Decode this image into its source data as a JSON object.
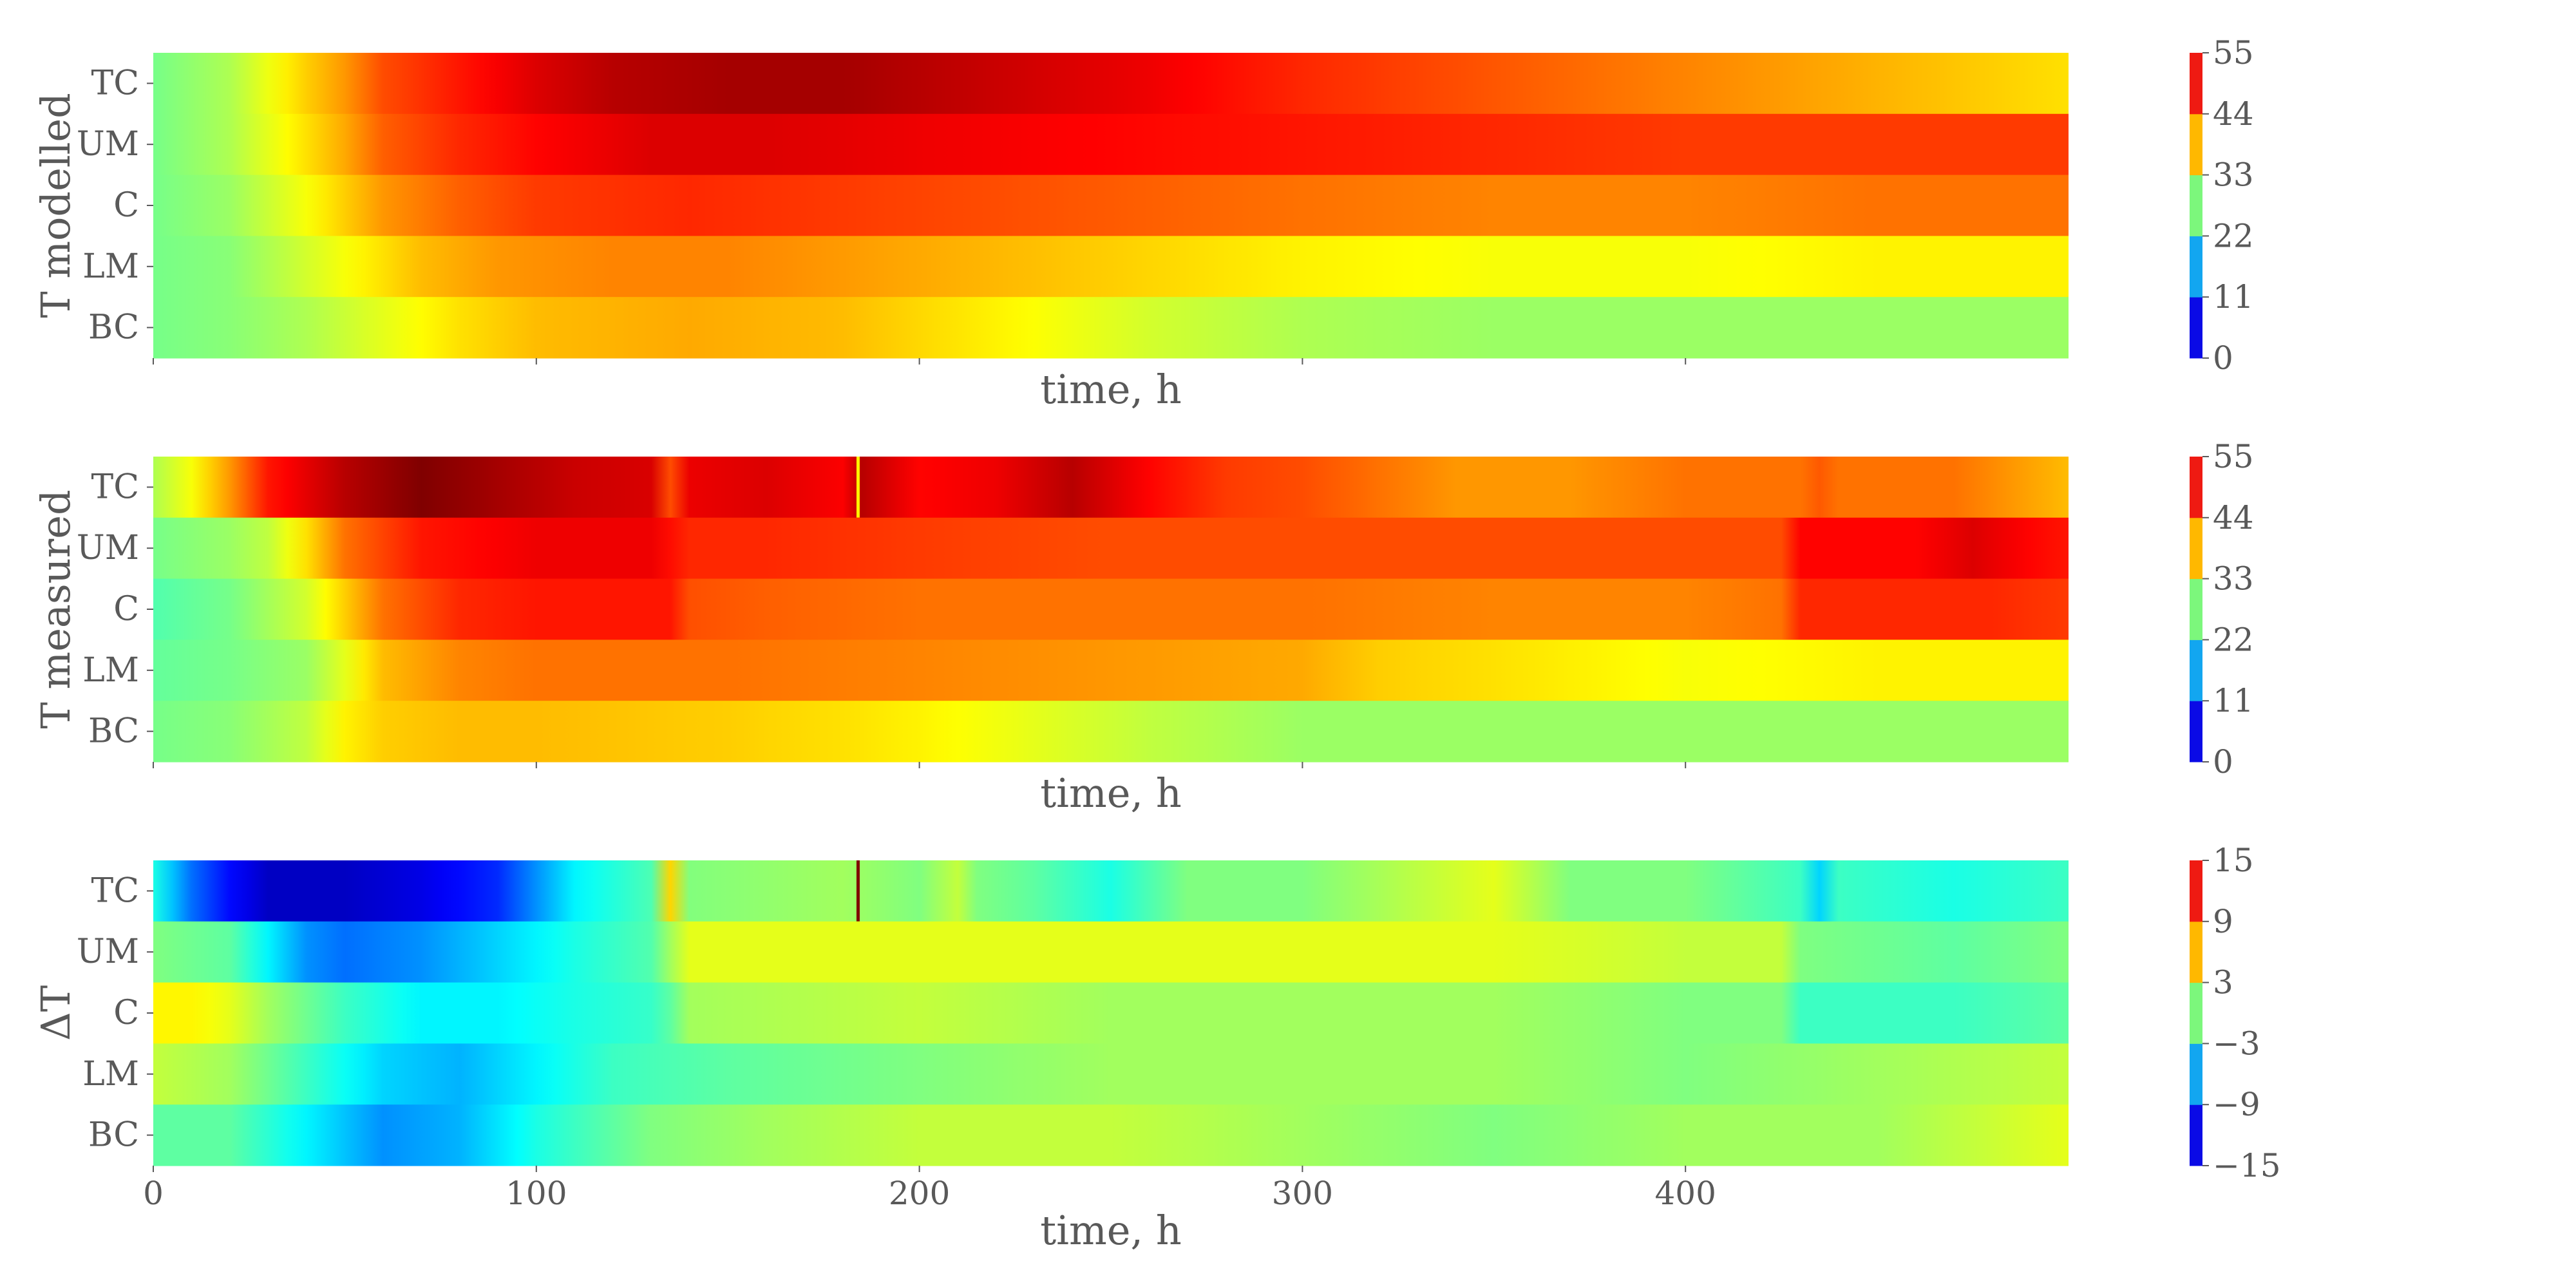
{
  "chart_data": [
    {
      "type": "heatmap",
      "ylabel": "T modelled",
      "xlabel": "time, h",
      "rows": [
        "TC",
        "UM",
        "C",
        "LM",
        "BC"
      ],
      "x_range": [
        0,
        500
      ],
      "x_ticks": [
        0,
        100,
        200,
        300,
        400
      ],
      "x_tick_labels_shown": false,
      "colorbar": {
        "min": 0,
        "max": 55,
        "ticks": [
          "0",
          "11",
          "22",
          "33",
          "44",
          "55"
        ]
      },
      "profiles": {
        "TC": [
          [
            0,
            27
          ],
          [
            20,
            30
          ],
          [
            40,
            37
          ],
          [
            50,
            40
          ],
          [
            60,
            44
          ],
          [
            80,
            47
          ],
          [
            100,
            50
          ],
          [
            120,
            52
          ],
          [
            150,
            53
          ],
          [
            180,
            53
          ],
          [
            220,
            51
          ],
          [
            260,
            49
          ],
          [
            300,
            46
          ],
          [
            340,
            44
          ],
          [
            380,
            42
          ],
          [
            420,
            40
          ],
          [
            460,
            38
          ],
          [
            500,
            36
          ]
        ],
        "UM": [
          [
            0,
            27
          ],
          [
            20,
            30
          ],
          [
            40,
            36
          ],
          [
            50,
            39
          ],
          [
            60,
            43
          ],
          [
            80,
            46
          ],
          [
            100,
            48
          ],
          [
            130,
            50
          ],
          [
            160,
            50
          ],
          [
            200,
            49
          ],
          [
            250,
            48
          ],
          [
            300,
            47
          ],
          [
            350,
            46
          ],
          [
            400,
            45
          ],
          [
            450,
            45
          ],
          [
            500,
            45
          ]
        ],
        "C": [
          [
            0,
            27
          ],
          [
            20,
            29
          ],
          [
            40,
            34
          ],
          [
            50,
            37
          ],
          [
            60,
            40
          ],
          [
            80,
            43
          ],
          [
            100,
            45
          ],
          [
            140,
            46
          ],
          [
            180,
            45
          ],
          [
            220,
            44
          ],
          [
            260,
            43
          ],
          [
            300,
            42
          ],
          [
            350,
            41
          ],
          [
            400,
            41
          ],
          [
            450,
            42
          ],
          [
            500,
            42
          ]
        ],
        "LM": [
          [
            0,
            27
          ],
          [
            20,
            28
          ],
          [
            40,
            32
          ],
          [
            60,
            36
          ],
          [
            70,
            38
          ],
          [
            90,
            40
          ],
          [
            120,
            41
          ],
          [
            150,
            41
          ],
          [
            200,
            39
          ],
          [
            250,
            37
          ],
          [
            300,
            35
          ],
          [
            350,
            34
          ],
          [
            400,
            34
          ],
          [
            450,
            35
          ],
          [
            500,
            35
          ]
        ],
        "BC": [
          [
            0,
            27
          ],
          [
            20,
            28
          ],
          [
            40,
            30
          ],
          [
            60,
            33
          ],
          [
            80,
            36
          ],
          [
            100,
            38
          ],
          [
            140,
            39
          ],
          [
            180,
            38
          ],
          [
            220,
            35
          ],
          [
            260,
            32
          ],
          [
            300,
            30
          ],
          [
            350,
            29
          ],
          [
            400,
            29
          ],
          [
            450,
            29
          ],
          [
            500,
            29
          ]
        ]
      },
      "spikes": {}
    },
    {
      "type": "heatmap",
      "ylabel": "T measured",
      "xlabel": "time, h",
      "rows": [
        "TC",
        "UM",
        "C",
        "LM",
        "BC"
      ],
      "x_range": [
        0,
        500
      ],
      "x_ticks": [
        0,
        100,
        200,
        300,
        400
      ],
      "x_tick_labels_shown": false,
      "colorbar": {
        "min": 0,
        "max": 55,
        "ticks": [
          "0",
          "11",
          "22",
          "33",
          "44",
          "55"
        ]
      },
      "profiles": {
        "TC": [
          [
            0,
            30
          ],
          [
            10,
            34
          ],
          [
            20,
            40
          ],
          [
            30,
            47
          ],
          [
            50,
            52
          ],
          [
            70,
            55
          ],
          [
            90,
            53
          ],
          [
            110,
            51
          ],
          [
            134,
            50
          ],
          [
            135,
            44
          ],
          [
            137,
            49
          ],
          [
            160,
            50
          ],
          [
            183,
            48
          ],
          [
            185,
            52
          ],
          [
            200,
            48
          ],
          [
            220,
            49
          ],
          [
            240,
            52
          ],
          [
            260,
            48
          ],
          [
            280,
            45
          ],
          [
            300,
            44
          ],
          [
            340,
            40
          ],
          [
            370,
            40
          ],
          [
            400,
            42
          ],
          [
            430,
            42
          ],
          [
            433,
            46
          ],
          [
            436,
            42
          ],
          [
            470,
            42
          ],
          [
            500,
            38
          ]
        ],
        "UM": [
          [
            0,
            27
          ],
          [
            20,
            29
          ],
          [
            30,
            31
          ],
          [
            40,
            36
          ],
          [
            50,
            42
          ],
          [
            70,
            47
          ],
          [
            100,
            49
          ],
          [
            134,
            49
          ],
          [
            136,
            46
          ],
          [
            160,
            46
          ],
          [
            200,
            45
          ],
          [
            250,
            44
          ],
          [
            300,
            44
          ],
          [
            350,
            44
          ],
          [
            400,
            44
          ],
          [
            425,
            44
          ],
          [
            428,
            48
          ],
          [
            460,
            48
          ],
          [
            475,
            50
          ],
          [
            490,
            48
          ],
          [
            500,
            47
          ]
        ],
        "C": [
          [
            0,
            25
          ],
          [
            20,
            27
          ],
          [
            40,
            32
          ],
          [
            50,
            37
          ],
          [
            60,
            42
          ],
          [
            80,
            46
          ],
          [
            100,
            47
          ],
          [
            135,
            47
          ],
          [
            137,
            44
          ],
          [
            160,
            43
          ],
          [
            200,
            42
          ],
          [
            250,
            42
          ],
          [
            300,
            42
          ],
          [
            350,
            41
          ],
          [
            400,
            41
          ],
          [
            425,
            42
          ],
          [
            428,
            46
          ],
          [
            480,
            46
          ],
          [
            500,
            45
          ]
        ],
        "LM": [
          [
            0,
            26
          ],
          [
            20,
            27
          ],
          [
            40,
            29
          ],
          [
            50,
            33
          ],
          [
            60,
            38
          ],
          [
            80,
            41
          ],
          [
            100,
            42
          ],
          [
            150,
            42
          ],
          [
            200,
            41
          ],
          [
            250,
            40
          ],
          [
            300,
            39
          ],
          [
            320,
            37
          ],
          [
            350,
            36
          ],
          [
            400,
            34
          ],
          [
            450,
            35
          ],
          [
            500,
            35
          ]
        ],
        "BC": [
          [
            0,
            27
          ],
          [
            20,
            28
          ],
          [
            40,
            31
          ],
          [
            50,
            35
          ],
          [
            60,
            37
          ],
          [
            80,
            38
          ],
          [
            100,
            38
          ],
          [
            150,
            37
          ],
          [
            180,
            36
          ],
          [
            200,
            35
          ],
          [
            230,
            33
          ],
          [
            260,
            31
          ],
          [
            300,
            29
          ],
          [
            350,
            29
          ],
          [
            400,
            29
          ],
          [
            450,
            29
          ],
          [
            500,
            29
          ]
        ]
      },
      "spikes": {
        "TC": [
          [
            184,
            35
          ]
        ]
      }
    },
    {
      "type": "heatmap",
      "ylabel": "ΔT",
      "xlabel": "time, h",
      "rows": [
        "TC",
        "UM",
        "C",
        "LM",
        "BC"
      ],
      "x_range": [
        0,
        500
      ],
      "x_ticks": [
        0,
        100,
        200,
        300,
        400
      ],
      "x_tick_labels": [
        "0",
        "100",
        "200",
        "300",
        "400"
      ],
      "x_tick_labels_shown": true,
      "colorbar": {
        "min": -15,
        "max": 15,
        "ticks": [
          "−15",
          "−9",
          "−3",
          "3",
          "9",
          "15"
        ]
      },
      "profiles": {
        "TC": [
          [
            0,
            -3
          ],
          [
            10,
            -8
          ],
          [
            20,
            -11
          ],
          [
            30,
            -13
          ],
          [
            50,
            -13
          ],
          [
            70,
            -12
          ],
          [
            90,
            -10
          ],
          [
            100,
            -7
          ],
          [
            110,
            -4
          ],
          [
            134,
            -1
          ],
          [
            135,
            5
          ],
          [
            137,
            0
          ],
          [
            180,
            1
          ],
          [
            200,
            0
          ],
          [
            210,
            2
          ],
          [
            215,
            0
          ],
          [
            230,
            -1
          ],
          [
            250,
            -3
          ],
          [
            270,
            0
          ],
          [
            300,
            0
          ],
          [
            350,
            3
          ],
          [
            370,
            0
          ],
          [
            400,
            0
          ],
          [
            430,
            -2
          ],
          [
            435,
            -5
          ],
          [
            440,
            -2
          ],
          [
            470,
            -3
          ],
          [
            500,
            -2
          ]
        ],
        "UM": [
          [
            0,
            0
          ],
          [
            20,
            -1
          ],
          [
            30,
            -4
          ],
          [
            40,
            -7
          ],
          [
            50,
            -8
          ],
          [
            70,
            -7
          ],
          [
            90,
            -5
          ],
          [
            110,
            -3
          ],
          [
            134,
            -1
          ],
          [
            136,
            3
          ],
          [
            160,
            3
          ],
          [
            200,
            3
          ],
          [
            250,
            3
          ],
          [
            300,
            3
          ],
          [
            350,
            3
          ],
          [
            400,
            2
          ],
          [
            425,
            2
          ],
          [
            428,
            0
          ],
          [
            470,
            -1
          ],
          [
            500,
            0
          ]
        ],
        "C": [
          [
            0,
            4
          ],
          [
            10,
            4
          ],
          [
            20,
            3
          ],
          [
            30,
            1
          ],
          [
            50,
            -2
          ],
          [
            70,
            -4
          ],
          [
            90,
            -4
          ],
          [
            110,
            -3
          ],
          [
            134,
            -2
          ],
          [
            137,
            1
          ],
          [
            200,
            2
          ],
          [
            250,
            1
          ],
          [
            300,
            1
          ],
          [
            350,
            1
          ],
          [
            400,
            0
          ],
          [
            425,
            0
          ],
          [
            428,
            -2
          ],
          [
            470,
            -2
          ],
          [
            500,
            -1
          ]
        ],
        "LM": [
          [
            0,
            2
          ],
          [
            20,
            1
          ],
          [
            40,
            -2
          ],
          [
            60,
            -5
          ],
          [
            80,
            -6
          ],
          [
            100,
            -4
          ],
          [
            120,
            -2
          ],
          [
            150,
            -1
          ],
          [
            200,
            0
          ],
          [
            250,
            1
          ],
          [
            300,
            1
          ],
          [
            350,
            1
          ],
          [
            400,
            0
          ],
          [
            450,
            1
          ],
          [
            500,
            2
          ]
        ],
        "BC": [
          [
            0,
            -1
          ],
          [
            20,
            -1
          ],
          [
            40,
            -4
          ],
          [
            60,
            -7
          ],
          [
            80,
            -6
          ],
          [
            100,
            -3
          ],
          [
            130,
            0
          ],
          [
            160,
            1
          ],
          [
            200,
            2
          ],
          [
            250,
            2
          ],
          [
            300,
            1
          ],
          [
            350,
            0
          ],
          [
            400,
            1
          ],
          [
            450,
            1
          ],
          [
            500,
            3
          ]
        ]
      },
      "spikes": {
        "TC": [
          [
            184,
            15
          ]
        ]
      }
    }
  ]
}
